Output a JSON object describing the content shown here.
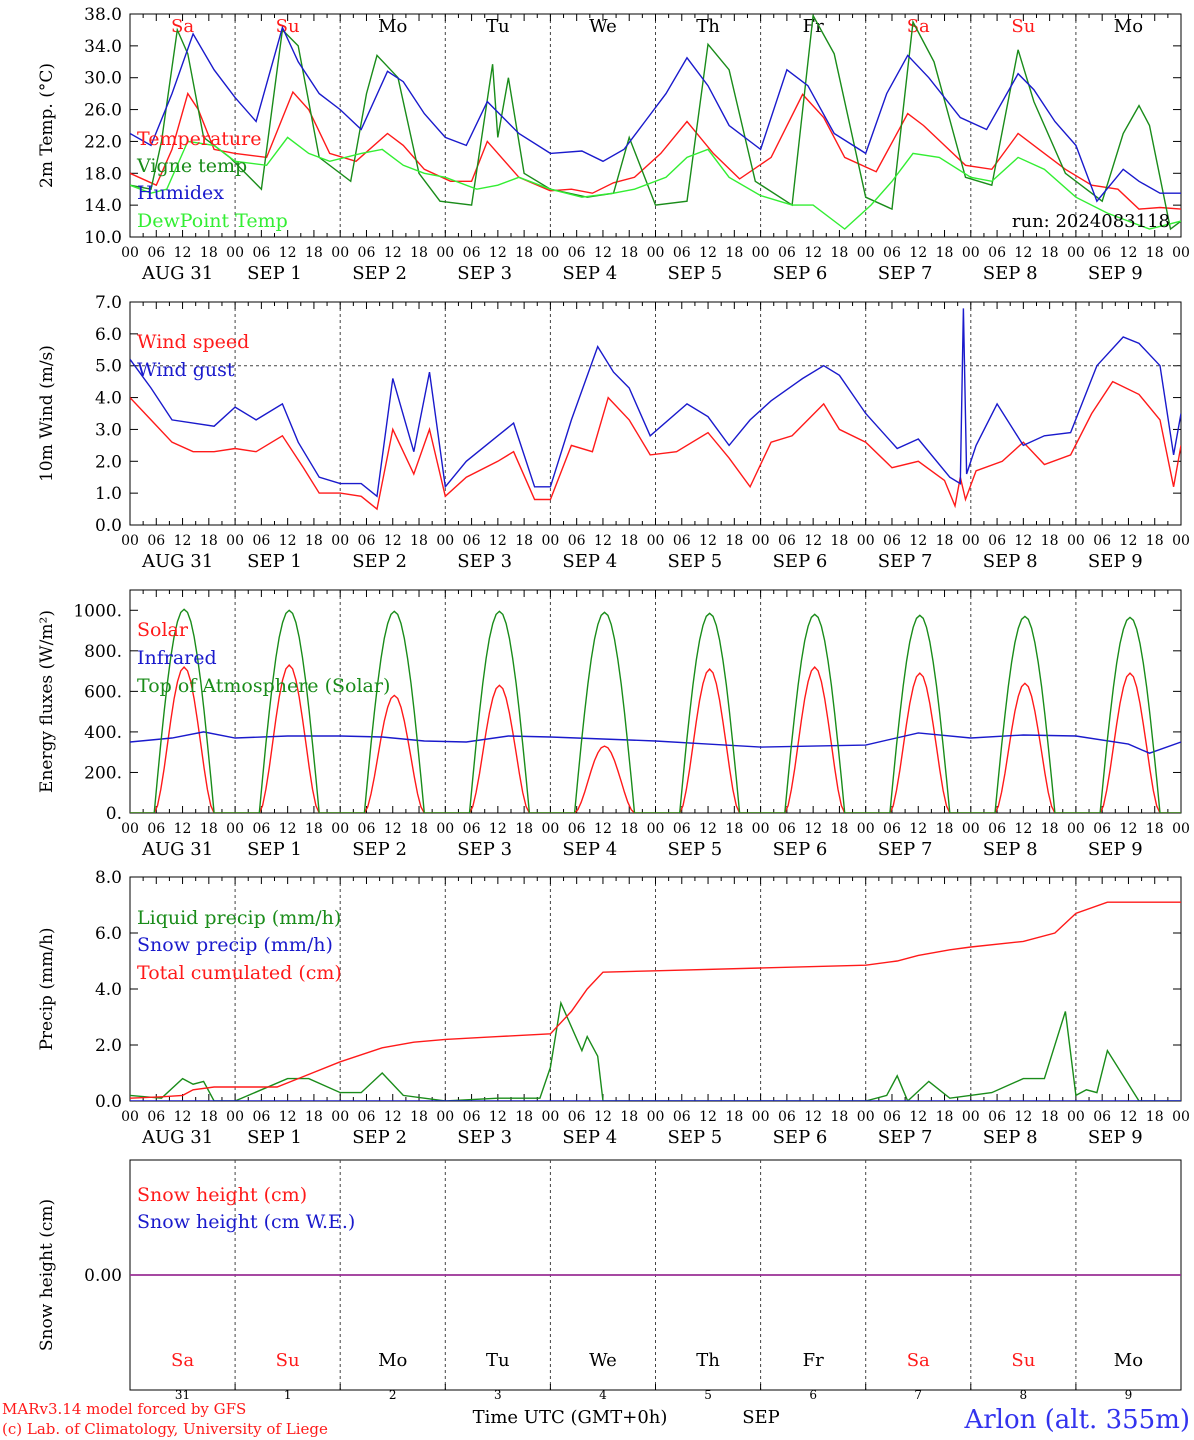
{
  "run_label": "run: 2024083118",
  "footer": {
    "model": "MARv3.14 model forced by GFS",
    "lab": "(c) Lab. of Climatology, University of Liege",
    "time_axis": "Time UTC (GMT+0h)",
    "month": "SEP",
    "station": "Arlon (alt. 355m)"
  },
  "day_names": [
    "Sa",
    "Su",
    "Mo",
    "Tu",
    "We",
    "Th",
    "Fr",
    "Sa",
    "Su",
    "Mo"
  ],
  "weekend_flags": [
    true,
    true,
    false,
    false,
    false,
    false,
    false,
    true,
    true,
    false
  ],
  "date_labels": [
    "AUG 31",
    "SEP  1",
    "SEP  2",
    "SEP  3",
    "SEP  4",
    "SEP  5",
    "SEP  6",
    "SEP  7",
    "SEP  8",
    "SEP  9"
  ],
  "day_numbers": [
    "31",
    "1",
    "2",
    "3",
    "4",
    "5",
    "6",
    "7",
    "8",
    "9"
  ],
  "hour_ticks": [
    "00",
    "06",
    "12",
    "18"
  ],
  "end_tick": "00",
  "chart_data": [
    {
      "id": "temp",
      "type": "line",
      "ylabel": "2m Temp. (°C)",
      "ylim": [
        10,
        38
      ],
      "yticks": [
        "10.0",
        "14.0",
        "18.0",
        "22.0",
        "26.0",
        "30.0",
        "34.0",
        "38.0"
      ],
      "ytick_values": [
        10,
        14,
        18,
        22,
        26,
        30,
        34,
        38
      ],
      "show_day_names": true,
      "x_unit": "days since 2024-08-31 00 UTC",
      "series": [
        {
          "name": "Temperature",
          "color": "#ff1a1a",
          "x": [
            0,
            0.25,
            0.4,
            0.55,
            0.65,
            0.8,
            1,
            1.3,
            1.55,
            1.7,
            1.9,
            2.15,
            2.45,
            2.6,
            2.8,
            3.05,
            3.25,
            3.4,
            3.7,
            4,
            4.2,
            4.4,
            4.6,
            4.8,
            5.05,
            5.3,
            5.55,
            5.8,
            6.1,
            6.4,
            6.6,
            6.8,
            7.1,
            7.4,
            7.55,
            7.75,
            7.95,
            8.2,
            8.45,
            8.65,
            8.9,
            9.15,
            9.4,
            9.6,
            9.8,
            10
          ],
          "y": [
            18,
            16.5,
            21,
            28,
            26,
            21,
            20.5,
            20,
            28.2,
            26,
            20.5,
            19.5,
            23,
            21.5,
            18.5,
            17,
            17,
            22,
            17.5,
            15.8,
            16,
            15.5,
            16.8,
            17.5,
            20.5,
            24.5,
            20.5,
            17.3,
            20,
            27.9,
            25,
            20,
            18.2,
            25.5,
            24,
            21.5,
            19,
            18.5,
            23,
            21,
            18.5,
            16.5,
            16,
            13.5,
            13.7,
            13.5
          ]
        },
        {
          "name": "Vigne temp",
          "color": "#1a8c1a",
          "x": [
            0,
            0.2,
            0.3,
            0.45,
            0.55,
            0.7,
            0.95,
            1.25,
            1.45,
            1.6,
            1.8,
            2.1,
            2.25,
            2.35,
            2.55,
            2.75,
            2.95,
            3.25,
            3.45,
            3.5,
            3.6,
            3.75,
            4,
            4.35,
            4.6,
            4.75,
            5,
            5.3,
            5.5,
            5.7,
            5.95,
            6.3,
            6.5,
            6.7,
            7,
            7.25,
            7.45,
            7.65,
            7.95,
            8.2,
            8.45,
            8.6,
            8.9,
            9.25,
            9.45,
            9.6,
            9.7,
            9.9,
            10
          ],
          "y": [
            16.5,
            16,
            22,
            36,
            33,
            22.5,
            20,
            16,
            36,
            34,
            20,
            17,
            28,
            32.8,
            30,
            18,
            14.5,
            14,
            31.7,
            22.5,
            30,
            18,
            16,
            15,
            15.5,
            22.5,
            14,
            14.5,
            34.2,
            31,
            17,
            14,
            37.8,
            33,
            15,
            13.5,
            37,
            32,
            17.5,
            16.5,
            33.5,
            27,
            18,
            14.5,
            23,
            26.5,
            24,
            11,
            12
          ]
        },
        {
          "name": "Humidex",
          "color": "#1a1acc",
          "x": [
            0,
            0.2,
            0.4,
            0.6,
            0.8,
            1,
            1.2,
            1.45,
            1.6,
            1.8,
            2,
            2.2,
            2.45,
            2.6,
            2.8,
            3,
            3.2,
            3.4,
            3.7,
            4,
            4.3,
            4.5,
            4.7,
            4.9,
            5.1,
            5.3,
            5.5,
            5.7,
            6,
            6.25,
            6.45,
            6.7,
            7,
            7.2,
            7.4,
            7.6,
            7.9,
            8.15,
            8.45,
            8.6,
            8.8,
            9,
            9.2,
            9.45,
            9.6,
            9.8,
            10
          ],
          "y": [
            23,
            21.5,
            28,
            35.5,
            31,
            27.5,
            24.5,
            36.3,
            32,
            28,
            26,
            23.5,
            30.8,
            29.5,
            25.5,
            22.5,
            21.5,
            27,
            23,
            20.5,
            20.8,
            19.5,
            21,
            24.5,
            28,
            32.5,
            29,
            24,
            21,
            31,
            29,
            23,
            20.5,
            28,
            32.8,
            30,
            25,
            23.5,
            30.5,
            28.5,
            24.5,
            21.5,
            14.5,
            18.5,
            17,
            15.5,
            15.5
          ]
        },
        {
          "name": "DewPoint Temp",
          "color": "#33ee33",
          "x": [
            0,
            0.2,
            0.35,
            0.55,
            0.8,
            1,
            1.3,
            1.5,
            1.7,
            1.9,
            2.2,
            2.4,
            2.6,
            2.8,
            3,
            3.3,
            3.5,
            3.7,
            4,
            4.3,
            4.6,
            4.8,
            5.1,
            5.3,
            5.5,
            5.7,
            6,
            6.3,
            6.5,
            6.8,
            7.05,
            7.25,
            7.45,
            7.7,
            8,
            8.2,
            8.45,
            8.7,
            9,
            9.3,
            9.5,
            9.7,
            10
          ],
          "y": [
            16.5,
            15.5,
            16,
            22,
            21.5,
            19.5,
            19,
            22.5,
            20.5,
            19.5,
            20.5,
            21,
            19,
            18,
            17.5,
            16,
            16.5,
            17.5,
            16,
            15,
            15.5,
            16,
            17.5,
            20,
            21,
            17.5,
            15.2,
            14,
            14,
            11,
            14,
            17,
            20.5,
            20,
            17.5,
            17,
            20,
            18.5,
            15,
            13,
            12,
            11,
            12
          ]
        }
      ]
    },
    {
      "id": "wind",
      "type": "line",
      "ylabel": "10m Wind (m/s)",
      "ylim": [
        0,
        7
      ],
      "yticks": [
        "0.0",
        "1.0",
        "2.0",
        "3.0",
        "4.0",
        "5.0",
        "6.0",
        "7.0"
      ],
      "ytick_values": [
        0,
        1,
        2,
        3,
        4,
        5,
        6,
        7
      ],
      "ref_line": 5,
      "x_unit": "days since 2024-08-31 00 UTC",
      "series": [
        {
          "name": "Wind speed",
          "color": "#ff1a1a",
          "x": [
            0,
            0.2,
            0.4,
            0.6,
            0.8,
            1,
            1.2,
            1.45,
            1.65,
            1.8,
            2,
            2.2,
            2.35,
            2.5,
            2.7,
            2.85,
            3,
            3.2,
            3.5,
            3.65,
            3.85,
            4,
            4.2,
            4.4,
            4.55,
            4.75,
            4.95,
            5.2,
            5.5,
            5.7,
            5.9,
            6.1,
            6.3,
            6.6,
            6.75,
            7,
            7.25,
            7.5,
            7.75,
            7.85,
            7.9,
            7.95,
            8.05,
            8.3,
            8.5,
            8.7,
            8.95,
            9.15,
            9.35,
            9.6,
            9.8,
            9.93,
            10
          ],
          "y": [
            4,
            3.3,
            2.6,
            2.3,
            2.3,
            2.4,
            2.3,
            2.8,
            1.8,
            1,
            1,
            0.9,
            0.5,
            3,
            1.6,
            3,
            0.9,
            1.5,
            2,
            2.3,
            0.8,
            0.8,
            2.5,
            2.3,
            4,
            3.3,
            2.2,
            2.3,
            2.9,
            2.1,
            1.2,
            2.6,
            2.8,
            3.8,
            3,
            2.6,
            1.8,
            2,
            1.4,
            0.6,
            1.5,
            0.8,
            1.7,
            2,
            2.6,
            1.9,
            2.2,
            3.5,
            4.5,
            4.1,
            3.3,
            1.2,
            2.5
          ]
        },
        {
          "name": "Wind gust",
          "color": "#1a1acc",
          "x": [
            0,
            0.2,
            0.4,
            0.6,
            0.8,
            1,
            1.2,
            1.45,
            1.6,
            1.8,
            2,
            2.2,
            2.35,
            2.5,
            2.7,
            2.85,
            3,
            3.2,
            3.5,
            3.65,
            3.85,
            4,
            4.2,
            4.45,
            4.6,
            4.75,
            4.95,
            5.3,
            5.5,
            5.7,
            5.9,
            6.1,
            6.4,
            6.6,
            6.75,
            7,
            7.3,
            7.5,
            7.8,
            7.9,
            7.93,
            7.96,
            8.05,
            8.25,
            8.5,
            8.7,
            8.95,
            9.2,
            9.45,
            9.6,
            9.8,
            9.93,
            10
          ],
          "y": [
            5.2,
            4.3,
            3.3,
            3.2,
            3.1,
            3.7,
            3.3,
            3.8,
            2.6,
            1.5,
            1.3,
            1.3,
            0.9,
            4.6,
            2.3,
            4.8,
            1.2,
            2,
            2.8,
            3.2,
            1.2,
            1.2,
            3.3,
            5.6,
            4.8,
            4.3,
            2.8,
            3.8,
            3.4,
            2.5,
            3.3,
            3.9,
            4.6,
            5,
            4.7,
            3.5,
            2.4,
            2.7,
            1.5,
            1.3,
            6.8,
            1.6,
            2.5,
            3.8,
            2.5,
            2.8,
            2.9,
            5,
            5.9,
            5.7,
            5,
            2.2,
            3.5
          ]
        }
      ]
    },
    {
      "id": "energy",
      "type": "line",
      "ylabel": "Energy fluxes (W/m²)",
      "ylim": [
        0,
        1100
      ],
      "yticks": [
        "0.",
        "200.",
        "400.",
        "600.",
        "800.",
        "1000."
      ],
      "ytick_values": [
        0,
        200,
        400,
        600,
        800,
        1000
      ],
      "x_unit": "days since 2024-08-31 00 UTC",
      "solar_peaks": [
        720,
        730,
        580,
        630,
        330,
        710,
        720,
        690,
        640,
        690
      ],
      "toa_peaks": [
        1005,
        1000,
        995,
        995,
        990,
        985,
        980,
        975,
        970,
        965
      ],
      "series": [
        {
          "name": "Solar",
          "color": "#ff1a1a"
        },
        {
          "name": "Infrared",
          "color": "#1a1acc",
          "x": [
            0,
            0.2,
            0.4,
            0.7,
            1,
            1.5,
            2,
            2.4,
            2.8,
            3.2,
            3.6,
            4,
            4.5,
            5,
            5.5,
            6,
            6.5,
            7,
            7.5,
            8,
            8.5,
            9,
            9.5,
            9.7,
            10
          ],
          "y": [
            350,
            360,
            370,
            400,
            370,
            380,
            380,
            375,
            355,
            350,
            380,
            375,
            365,
            355,
            340,
            325,
            330,
            335,
            395,
            370,
            385,
            380,
            340,
            295,
            350
          ]
        },
        {
          "name": "Top of Atmosphere (Solar)",
          "color": "#1a8c1a"
        }
      ]
    },
    {
      "id": "precip",
      "type": "line",
      "ylabel": "Precip (mm/h)",
      "ylim": [
        0,
        8
      ],
      "yticks": [
        "0.0",
        "2.0",
        "4.0",
        "6.0",
        "8.0"
      ],
      "ytick_values": [
        0,
        2,
        4,
        6,
        8
      ],
      "x_unit": "days since 2024-08-31 00 UTC",
      "series": [
        {
          "name": "Liquid precip (mm/h)",
          "color": "#1a8c1a",
          "x": [
            0,
            0.3,
            0.5,
            0.6,
            0.7,
            0.8,
            0.9,
            1,
            1.5,
            1.7,
            2,
            2.2,
            2.4,
            2.6,
            3,
            3.5,
            3.9,
            4,
            4.1,
            4.3,
            4.35,
            4.45,
            4.5,
            4.6,
            5,
            6,
            7,
            7.2,
            7.3,
            7.4,
            7.6,
            7.8,
            8.2,
            8.5,
            8.7,
            8.9,
            9,
            9.1,
            9.2,
            9.3,
            9.6,
            10
          ],
          "y": [
            0.2,
            0.1,
            0.8,
            0.6,
            0.7,
            0,
            0,
            0,
            0.8,
            0.8,
            0.3,
            0.3,
            1,
            0.2,
            0,
            0.1,
            0.1,
            1.2,
            3.5,
            1.8,
            2.3,
            1.6,
            0,
            0,
            0,
            0,
            0,
            0.2,
            0.9,
            0,
            0.7,
            0.1,
            0.3,
            0.8,
            0.8,
            3.2,
            0.2,
            0.4,
            0.3,
            1.8,
            0,
            0
          ]
        },
        {
          "name": "Snow precip (mm/h)",
          "color": "#1a1acc",
          "x": [
            0,
            10
          ],
          "y": [
            0,
            0
          ]
        },
        {
          "name": "Total cumulated (cm)",
          "color": "#ff1a1a",
          "x": [
            0,
            0.3,
            0.5,
            0.6,
            0.8,
            1,
            1.4,
            1.6,
            2,
            2.4,
            2.7,
            3,
            3.5,
            4,
            4.2,
            4.35,
            4.5,
            5,
            6,
            7,
            7.3,
            7.5,
            7.8,
            8,
            8.5,
            8.8,
            9,
            9.3,
            10
          ],
          "y": [
            0.1,
            0.15,
            0.2,
            0.4,
            0.5,
            0.5,
            0.5,
            0.8,
            1.4,
            1.9,
            2.1,
            2.2,
            2.3,
            2.4,
            3.2,
            4,
            4.6,
            4.65,
            4.75,
            4.85,
            5,
            5.2,
            5.4,
            5.5,
            5.7,
            6,
            6.7,
            7.1,
            7.1
          ]
        }
      ]
    },
    {
      "id": "snow",
      "type": "line",
      "ylabel": "Snow height (cm)",
      "ylim": [
        -1,
        1
      ],
      "yticks": [
        "0.00"
      ],
      "ytick_values": [
        0
      ],
      "x_unit": "days since 2024-08-31 00 UTC",
      "series": [
        {
          "name": "Snow height (cm)",
          "color": "#ff1a1a",
          "x": [
            0,
            10
          ],
          "y": [
            0,
            0
          ]
        },
        {
          "name": "Snow height (cm W.E.)",
          "color": "#1a1acc",
          "x": [
            0,
            10
          ],
          "y": [
            0,
            0
          ]
        }
      ]
    }
  ]
}
